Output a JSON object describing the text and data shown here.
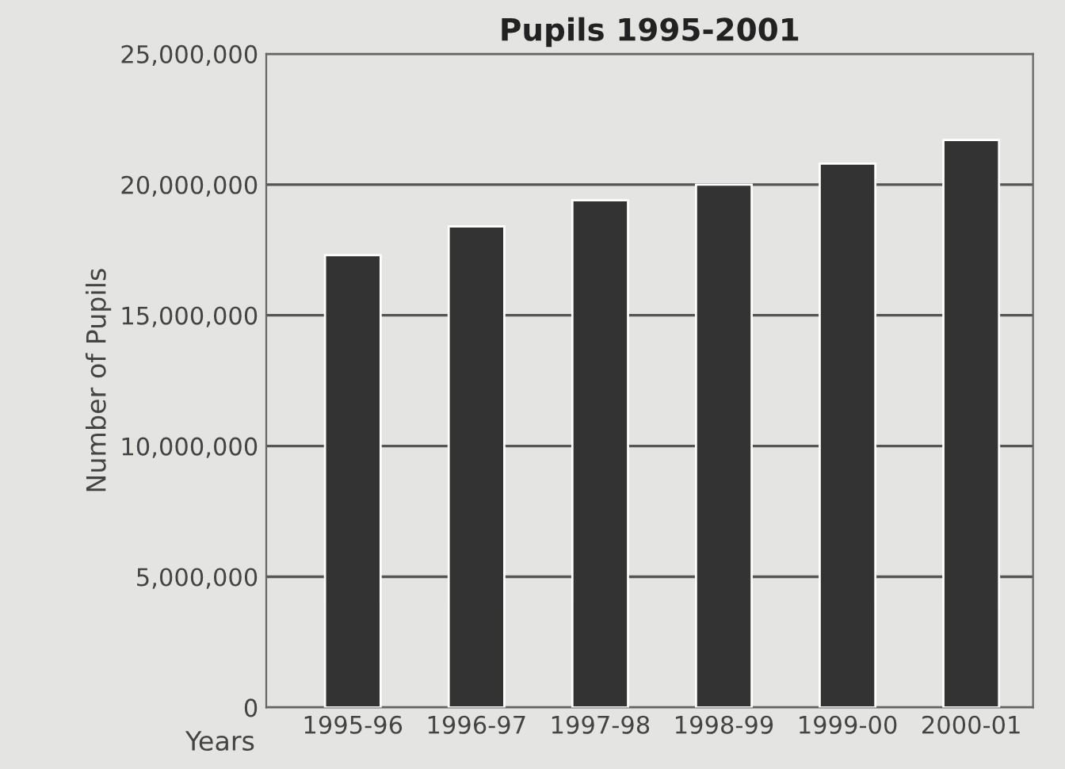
{
  "chart_data": {
    "type": "bar",
    "title": "Pupils 1995-2001",
    "xlabel": "Years",
    "ylabel": "Number of Pupils",
    "categories": [
      "1995-96",
      "1996-97",
      "1997-98",
      "1998-99",
      "1999-00",
      "2000-01"
    ],
    "values": [
      17300000,
      18400000,
      19400000,
      20000000,
      20800000,
      21700000
    ],
    "color": "#333333",
    "ylim": [
      0,
      25000000
    ],
    "yticks": [
      {
        "value": 0,
        "label": "0"
      },
      {
        "value": 5000000,
        "label": "5,000,000"
      },
      {
        "value": 10000000,
        "label": "10,000,000"
      },
      {
        "value": 15000000,
        "label": "15,000,000"
      },
      {
        "value": 20000000,
        "label": "20,000,000"
      },
      {
        "value": 25000000,
        "label": "25,000,000"
      }
    ],
    "grid": "y",
    "legend": false
  }
}
